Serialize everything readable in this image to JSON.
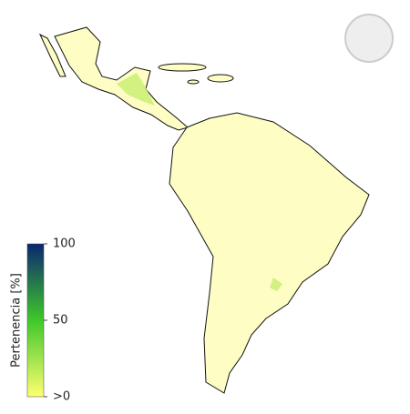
{
  "legend": {
    "title": "Pertenencia [%]",
    "lim": [
      0,
      100
    ],
    "ticks": [
      100,
      50,
      {
        "value": 0,
        "label": ">0"
      }
    ],
    "colors": [
      "#ffff70",
      "#3fc82a",
      "#0a2670"
    ]
  }
}
